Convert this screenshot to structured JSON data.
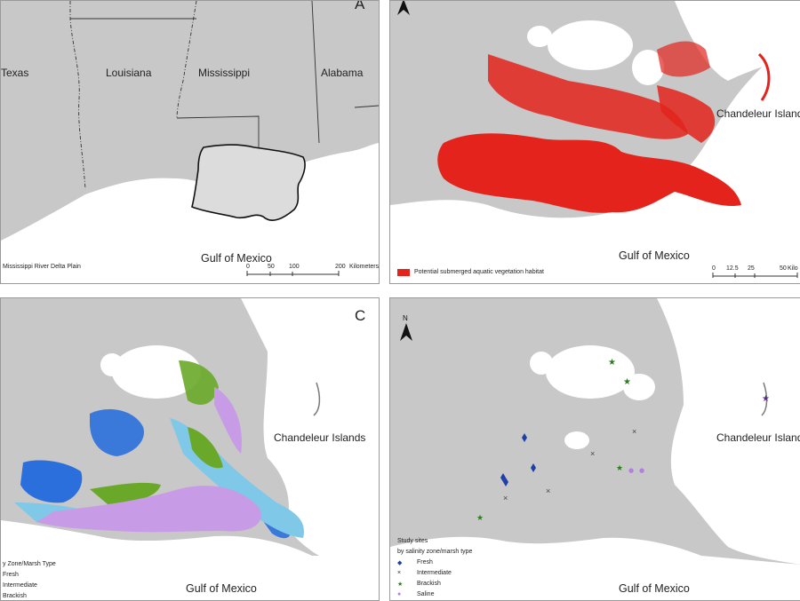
{
  "panel_a": {
    "letter": "A",
    "states": [
      "Texas",
      "Louisiana",
      "Mississippi",
      "Alabama"
    ],
    "gulf_label": "Gulf of Mexico",
    "legend_text": "Mississippi River Delta Plain",
    "scale_ticks": [
      "0",
      "50",
      "100",
      "200"
    ],
    "scale_unit": "Kilometers"
  },
  "panel_b": {
    "islands_label": "Chandeleur Islands",
    "gulf_label": "Gulf of Mexico",
    "legend_text": "Potential submerged aquatic vegetation habitat",
    "scale_ticks": [
      "0",
      "12.5",
      "25",
      "50"
    ],
    "scale_unit": "Kilo",
    "habitat_color": "#e3231c"
  },
  "panel_c": {
    "letter": "C",
    "islands_label": "Chandeleur Islands",
    "gulf_label": "Gulf of Mexico",
    "legend_title": "y Zone/Marsh Type",
    "legend_items": [
      "Fresh",
      "Intermediate",
      "Brackish"
    ],
    "colors": {
      "fresh": "#2a6fdb",
      "intermediate": "#7fc8e8",
      "brackish": "#6aa82a",
      "saline": "#c79be6"
    }
  },
  "panel_d": {
    "islands_label": "Chandeleur Islands",
    "gulf_label": "Gulf of Mexico",
    "legend_title": "Study sites",
    "legend_subtitle": "by salinity zone/marsh type",
    "legend_items": [
      "Fresh",
      "Intermediate",
      "Brackish",
      "Saline"
    ]
  },
  "north_letter": "N",
  "colors": {
    "land": "#c8c8c8",
    "water": "#ffffff",
    "border": "#333333"
  }
}
